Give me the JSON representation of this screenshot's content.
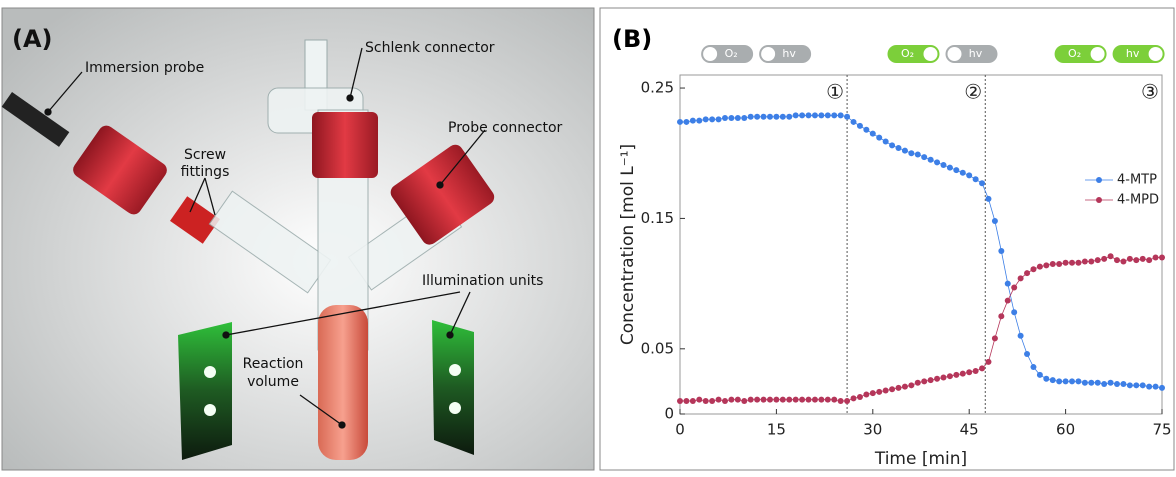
{
  "panel_a": {
    "label": "(A)",
    "annotations": {
      "immersion_probe": "Immersion probe",
      "schlenk_connector": "Schlenk connector",
      "screw_fittings": [
        "Screw",
        "fittings"
      ],
      "probe_connector": "Probe connector",
      "illumination_units": "Illumination units",
      "reaction_volume": [
        "Reaction",
        "volume"
      ]
    }
  },
  "chart_data": {
    "type": "line",
    "panel_label": "(B)",
    "x_label": "Time [min]",
    "y_label": "Concentration [mol L⁻¹]",
    "x": [
      0,
      1,
      2,
      3,
      4,
      5,
      6,
      7,
      8,
      9,
      10,
      11,
      12,
      13,
      14,
      15,
      16,
      17,
      18,
      19,
      20,
      21,
      22,
      23,
      24,
      25,
      26,
      27,
      28,
      29,
      30,
      31,
      32,
      33,
      34,
      35,
      36,
      37,
      38,
      39,
      40,
      41,
      42,
      43,
      44,
      45,
      46,
      47,
      48,
      49,
      50,
      51,
      52,
      53,
      54,
      55,
      56,
      57,
      58,
      59,
      60,
      61,
      62,
      63,
      64,
      65,
      66,
      67,
      68,
      69,
      70,
      71,
      72,
      73,
      74,
      75
    ],
    "series": [
      {
        "name": "4-MTP",
        "color": "#3d7fe6",
        "values": [
          0.224,
          0.224,
          0.225,
          0.225,
          0.226,
          0.226,
          0.226,
          0.227,
          0.227,
          0.227,
          0.227,
          0.228,
          0.228,
          0.228,
          0.228,
          0.228,
          0.228,
          0.228,
          0.229,
          0.229,
          0.229,
          0.229,
          0.229,
          0.229,
          0.229,
          0.229,
          0.228,
          0.224,
          0.221,
          0.218,
          0.215,
          0.212,
          0.209,
          0.206,
          0.204,
          0.202,
          0.2,
          0.199,
          0.197,
          0.195,
          0.193,
          0.191,
          0.189,
          0.187,
          0.185,
          0.183,
          0.18,
          0.177,
          0.165,
          0.148,
          0.125,
          0.1,
          0.078,
          0.06,
          0.046,
          0.036,
          0.03,
          0.027,
          0.026,
          0.025,
          0.025,
          0.025,
          0.025,
          0.024,
          0.024,
          0.024,
          0.023,
          0.024,
          0.023,
          0.023,
          0.022,
          0.022,
          0.022,
          0.021,
          0.021,
          0.02
        ]
      },
      {
        "name": "4-MPD",
        "color": "#b5365a",
        "values": [
          0.01,
          0.01,
          0.01,
          0.011,
          0.01,
          0.01,
          0.011,
          0.01,
          0.011,
          0.011,
          0.01,
          0.011,
          0.011,
          0.011,
          0.011,
          0.011,
          0.011,
          0.011,
          0.011,
          0.011,
          0.011,
          0.011,
          0.011,
          0.011,
          0.011,
          0.01,
          0.01,
          0.012,
          0.013,
          0.015,
          0.016,
          0.017,
          0.018,
          0.019,
          0.02,
          0.021,
          0.022,
          0.024,
          0.025,
          0.026,
          0.027,
          0.028,
          0.029,
          0.03,
          0.031,
          0.032,
          0.033,
          0.035,
          0.04,
          0.058,
          0.075,
          0.087,
          0.097,
          0.104,
          0.108,
          0.111,
          0.113,
          0.114,
          0.115,
          0.115,
          0.116,
          0.116,
          0.116,
          0.117,
          0.117,
          0.118,
          0.119,
          0.121,
          0.118,
          0.117,
          0.119,
          0.118,
          0.119,
          0.118,
          0.12,
          0.12
        ]
      }
    ],
    "xlim": [
      0,
      75
    ],
    "xticks": [
      0,
      15,
      30,
      45,
      60,
      75
    ],
    "ylim": [
      0,
      0.26
    ],
    "yticks": [
      0,
      0.05,
      0.15,
      0.25
    ],
    "phase_lines": [
      26,
      47.5
    ],
    "phases": [
      {
        "label": "①",
        "x": 26
      },
      {
        "label": "②",
        "x": 47.5
      },
      {
        "label": "③",
        "x": 75
      }
    ],
    "toggles": [
      {
        "x": 12,
        "items": [
          {
            "label": "O₂",
            "on": false
          },
          {
            "label": "hv",
            "on": false
          }
        ]
      },
      {
        "x": 41,
        "items": [
          {
            "label": "O₂",
            "on": true
          },
          {
            "label": "hv",
            "on": false
          }
        ]
      },
      {
        "x": 67,
        "items": [
          {
            "label": "O₂",
            "on": true
          },
          {
            "label": "hv",
            "on": true
          }
        ]
      }
    ],
    "legend": "right"
  }
}
